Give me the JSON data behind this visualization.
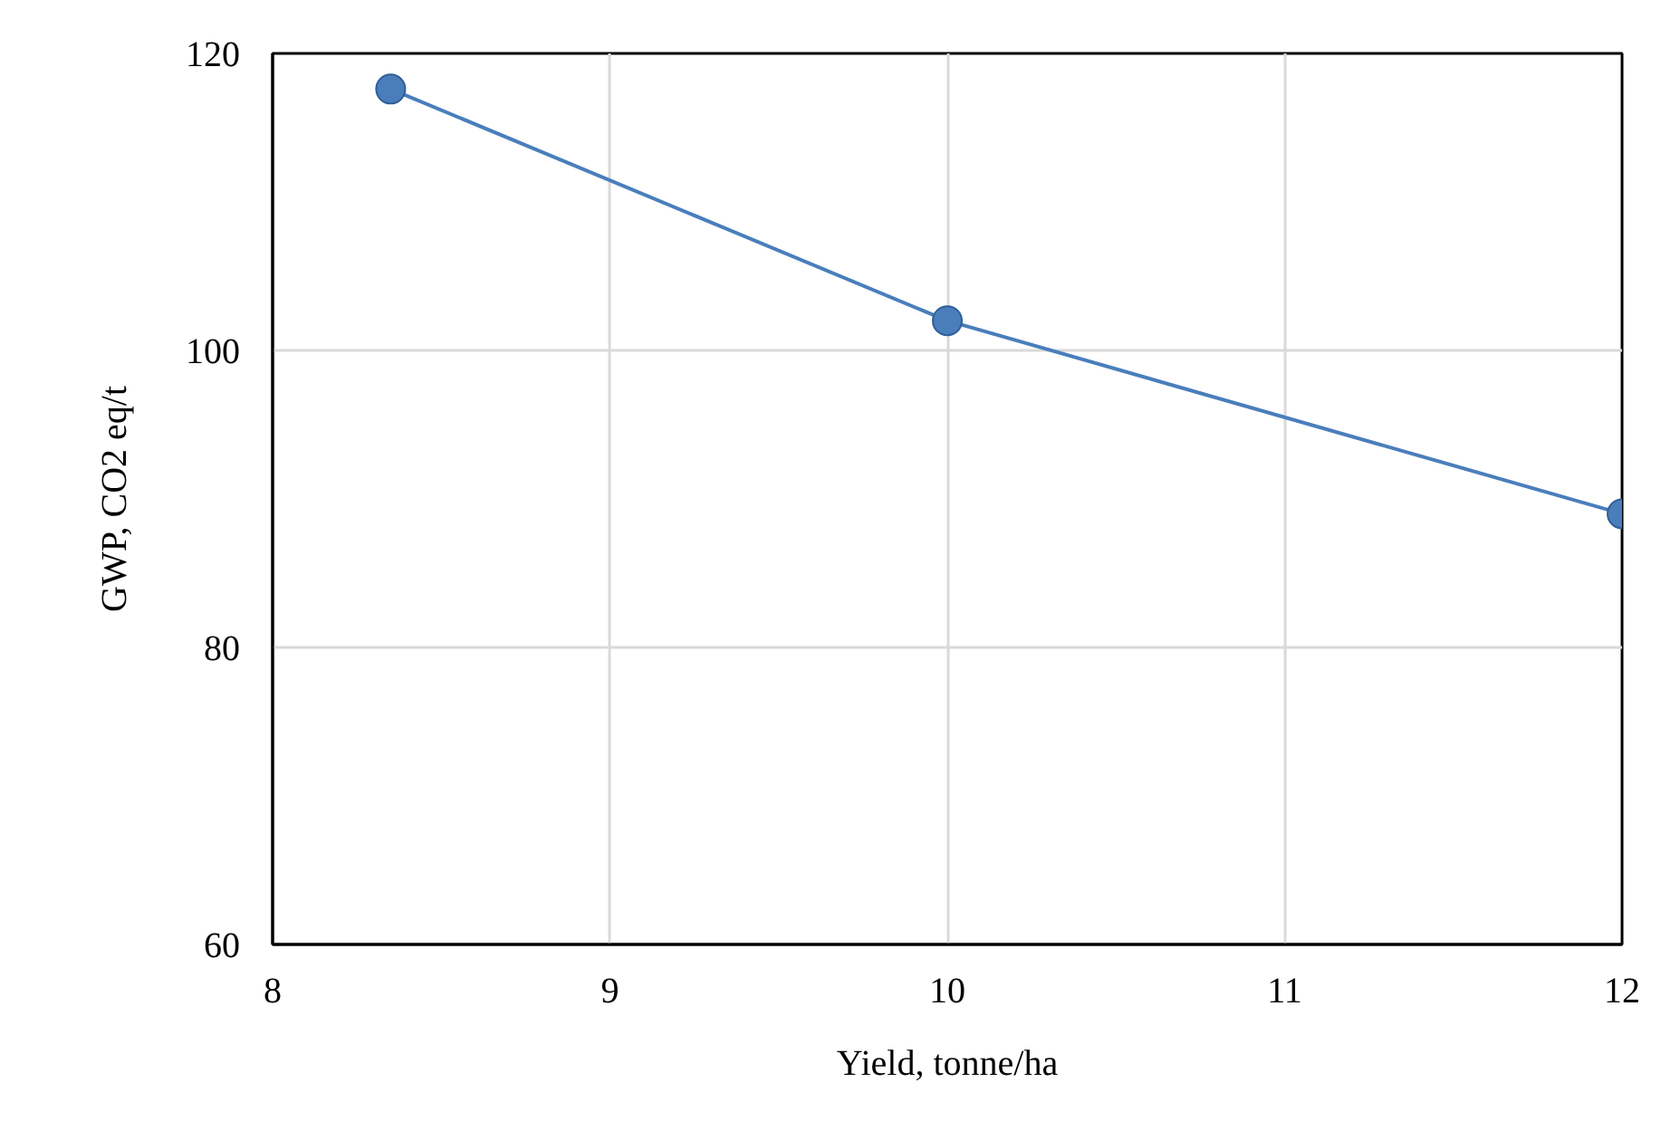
{
  "chart_data": {
    "type": "line",
    "xlabel": "Yield, tonne/ha",
    "ylabel": "GWP, CO2 eq/t",
    "x": [
      8.35,
      10,
      12
    ],
    "series": [
      {
        "color": "#4a7ebb",
        "values": [
          117.6,
          102,
          89
        ]
      }
    ],
    "xlim": [
      8,
      12
    ],
    "ylim": [
      60,
      120
    ],
    "xticks": [
      8,
      9,
      10,
      11,
      12
    ],
    "yticks": [
      60,
      80,
      100,
      120
    ],
    "grid": true,
    "marker": "circle",
    "line_style": "solid"
  }
}
